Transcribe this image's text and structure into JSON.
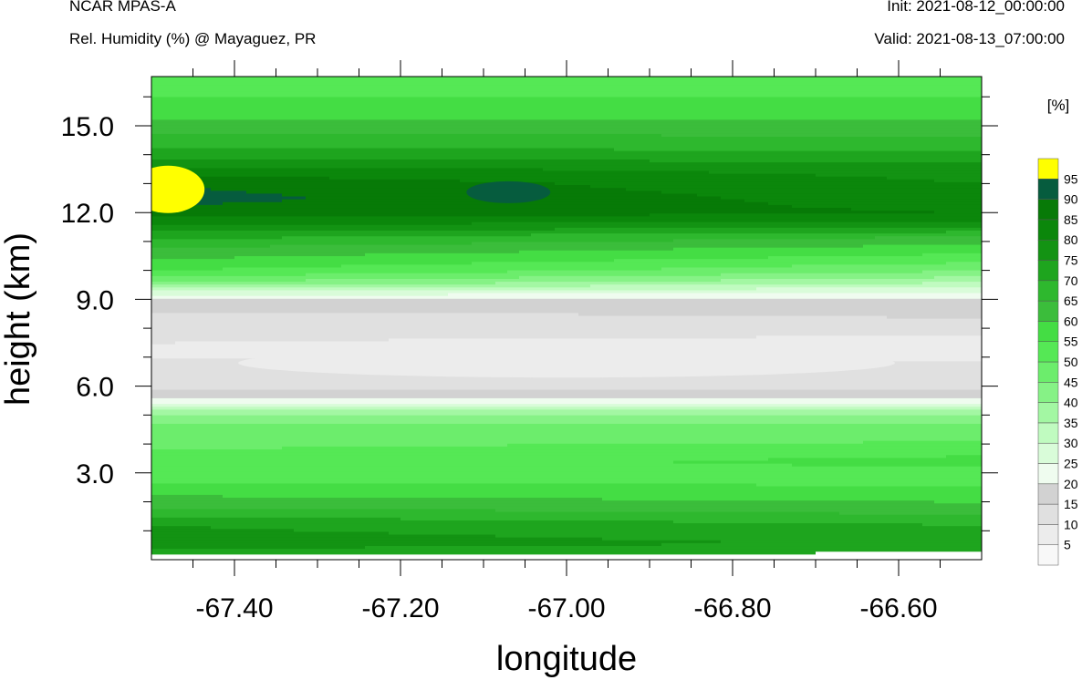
{
  "header": {
    "model": "NCAR MPAS-A",
    "field": "Rel. Humidity (%) @ Mayaguez, PR",
    "init": "Init: 2021-08-12_00:00:00",
    "valid": "Valid: 2021-08-13_07:00:00"
  },
  "chart_data": {
    "type": "heatmap",
    "title": "Rel. Humidity (%) @ Mayaguez, PR",
    "xlabel": "longitude",
    "ylabel": "height (km)",
    "xlim": [
      -67.5,
      -66.5
    ],
    "ylim": [
      0,
      16.7
    ],
    "x_ticks": [
      -67.4,
      -67.2,
      -67.0,
      -66.8,
      -66.6
    ],
    "x_tick_labels": [
      "-67.40",
      "-67.20",
      "-67.00",
      "-66.80",
      "-66.60"
    ],
    "y_ticks": [
      3,
      6,
      9,
      12,
      15
    ],
    "y_tick_labels": [
      "3.0",
      "6.0",
      "9.0",
      "12.0",
      "15.0"
    ],
    "colorbar": {
      "unit_label": "[%]",
      "levels": [
        5,
        10,
        15,
        20,
        25,
        30,
        35,
        40,
        45,
        50,
        55,
        60,
        65,
        70,
        75,
        80,
        85,
        90,
        95
      ],
      "level_labels": [
        "5",
        "10",
        "15",
        "20",
        "25",
        "30",
        "35",
        "40",
        "45",
        "50",
        "55",
        "60",
        "65",
        "70",
        "75",
        "80",
        "85",
        "90",
        "95"
      ],
      "colors": [
        "#f8f8f8",
        "#ececec",
        "#e0e0e0",
        "#d2d2d2",
        "#effcef",
        "#d9fcd9",
        "#c0fbc0",
        "#a3f7a3",
        "#86f286",
        "#6ced6c",
        "#55e855",
        "#44dd44",
        "#3bbd3b",
        "#2eb82e",
        "#1ea51e",
        "#139313",
        "#0b870b",
        "#077a07",
        "#065c3e",
        "#ffff00"
      ]
    },
    "height_profile": {
      "height_km": [
        0.2,
        0.6,
        1.2,
        1.8,
        2.4,
        3.0,
        3.4,
        3.8,
        4.4,
        5.0,
        5.5,
        6.0,
        6.5,
        7.0,
        7.5,
        8.0,
        8.5,
        9.0,
        9.3,
        9.6,
        10.0,
        10.4,
        10.8,
        11.2,
        11.6,
        12.0,
        12.5,
        13.0,
        13.5,
        14.0,
        14.5,
        15.0,
        15.5,
        16.0,
        16.5
      ],
      "rh_west_pct": [
        72,
        78,
        75,
        65,
        58,
        52,
        50,
        50,
        48,
        42,
        22,
        14,
        12,
        10,
        10,
        12,
        14,
        20,
        30,
        45,
        55,
        60,
        65,
        72,
        80,
        88,
        92,
        90,
        82,
        72,
        68,
        62,
        58,
        55,
        53
      ],
      "rh_east_pct": [
        72,
        74,
        70,
        62,
        56,
        52,
        58,
        52,
        48,
        42,
        22,
        14,
        12,
        9,
        8,
        12,
        16,
        18,
        26,
        35,
        45,
        52,
        58,
        65,
        78,
        85,
        82,
        80,
        78,
        72,
        66,
        62,
        58,
        55,
        53
      ]
    },
    "features": [
      {
        "label": "saturated patch",
        "lon": -67.48,
        "height_km": 12.8,
        "rh_pct": 96
      },
      {
        "label": "moist core",
        "lon": -67.07,
        "height_km": 12.7,
        "rh_pct": 91
      },
      {
        "label": "dry layer",
        "lon": -67.0,
        "height_km": 6.8,
        "rh_pct": 6
      }
    ]
  }
}
